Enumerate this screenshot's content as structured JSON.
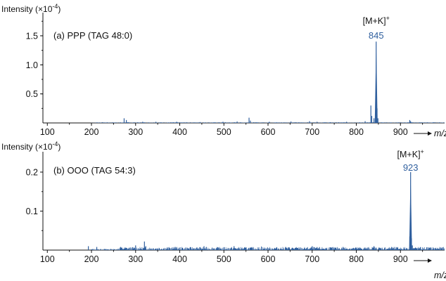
{
  "chart_data": [
    {
      "type": "line",
      "panel_label": "(a) PPP (TAG 48:0)",
      "ylabel": "Intensity (×10",
      "ylabel_exp": "-4",
      "ylabel_close": ")",
      "xlabel": "m/z",
      "xlim": [
        90,
        1000
      ],
      "xticks": [
        100,
        200,
        300,
        400,
        500,
        600,
        700,
        800,
        900
      ],
      "ylim": [
        0,
        1.85
      ],
      "yticks": [
        "0.5",
        "1.0",
        "1.5"
      ],
      "ytick_values": [
        0.5,
        1.0,
        1.5
      ],
      "annotation_ion": "[M+K]",
      "annotation_charge": "+",
      "annotation_mz": "845",
      "color": "#2f5f9e",
      "peaks": [
        [
          274,
          0.08
        ],
        [
          279,
          0.05
        ],
        [
          316,
          0.02
        ],
        [
          346,
          0.02
        ],
        [
          393,
          0.02
        ],
        [
          446,
          0.015
        ],
        [
          498,
          0.02
        ],
        [
          530,
          0.025
        ],
        [
          557,
          0.09
        ],
        [
          560,
          0.04
        ],
        [
          603,
          0.02
        ],
        [
          652,
          0.025
        ],
        [
          694,
          0.03
        ],
        [
          711,
          0.02
        ],
        [
          778,
          0.02
        ],
        [
          820,
          0.03
        ],
        [
          833,
          0.3
        ],
        [
          835,
          0.12
        ],
        [
          840,
          0.08
        ],
        [
          845,
          1.4
        ],
        [
          847,
          0.25
        ],
        [
          849,
          0.08
        ],
        [
          921,
          0.05
        ],
        [
          923,
          0.03
        ]
      ],
      "noise_level": 0.012
    },
    {
      "type": "line",
      "panel_label": "(b) OOO (TAG 54:3)",
      "ylabel": "Intensity (×10",
      "ylabel_exp": "-4",
      "ylabel_close": ")",
      "xlabel": "m/z",
      "xlim": [
        90,
        1000
      ],
      "xticks": [
        100,
        200,
        300,
        400,
        500,
        600,
        700,
        800,
        900
      ],
      "ylim": [
        0,
        0.245
      ],
      "yticks": [
        "0.1",
        "0.2"
      ],
      "ytick_values": [
        0.1,
        0.2
      ],
      "annotation_ion": "[M+K]",
      "annotation_charge": "+",
      "annotation_mz": "923",
      "color": "#2f5f9e",
      "peaks": [
        [
          193,
          0.01
        ],
        [
          212,
          0.008
        ],
        [
          266,
          0.008
        ],
        [
          300,
          0.012
        ],
        [
          320,
          0.022
        ],
        [
          323,
          0.01
        ],
        [
          390,
          0.008
        ],
        [
          455,
          0.01
        ],
        [
          523,
          0.01
        ],
        [
          585,
          0.009
        ],
        [
          640,
          0.008
        ],
        [
          700,
          0.01
        ],
        [
          770,
          0.008
        ],
        [
          840,
          0.01
        ],
        [
          880,
          0.008
        ],
        [
          921,
          0.035
        ],
        [
          922,
          0.05
        ],
        [
          923,
          0.2
        ],
        [
          925,
          0.03
        ],
        [
          927,
          0.012
        ]
      ],
      "noise_level": 0.008
    }
  ]
}
